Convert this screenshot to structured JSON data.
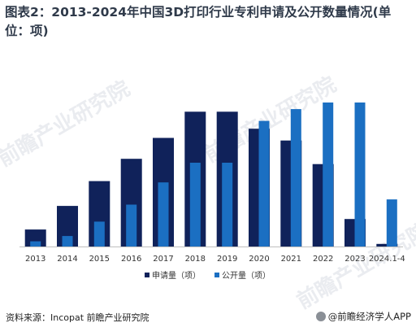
{
  "header": {
    "title": "图表2：2013-2024年中国3D打印行业专利申请及公开数量情况(单位：项)"
  },
  "chart_data": {
    "type": "bar",
    "categories": [
      "2013",
      "2014",
      "2015",
      "2016",
      "2017",
      "2018",
      "2019",
      "2020",
      "2021",
      "2022",
      "2023",
      "2024.1-4"
    ],
    "series": [
      {
        "name": "申请量（项）",
        "values": [
          13,
          31,
          50,
          67,
          83,
          103,
          103,
          90,
          81,
          63,
          21,
          2
        ]
      },
      {
        "name": "公开量（项）",
        "values": [
          4,
          8,
          19,
          32,
          49,
          64,
          64,
          96,
          105,
          110,
          110,
          36
        ]
      }
    ],
    "colors": [
      "#10225a",
      "#1b6fc2"
    ],
    "ylim": [
      0,
      115
    ],
    "grid": false,
    "legend_position": "bottom-center"
  },
  "watermark": {
    "text": "前瞻产业研究院"
  },
  "footer": {
    "source": "资料来源：Incopat 前瞻产业研究院",
    "brand": "@前瞻经济学人APP"
  }
}
